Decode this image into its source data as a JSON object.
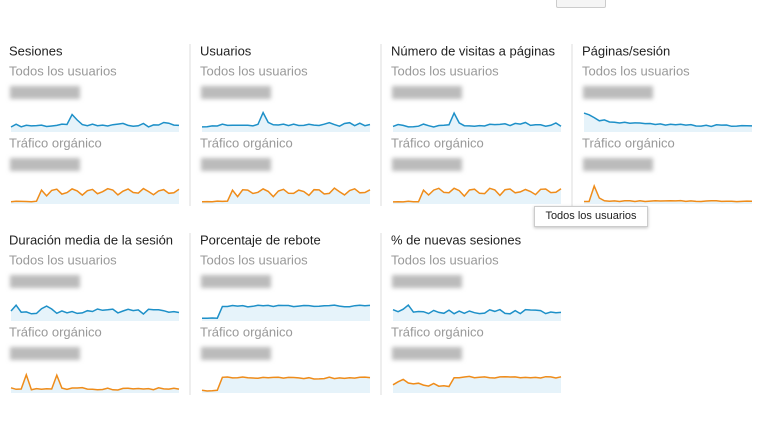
{
  "widgets": [
    {
      "title": "Sesiones",
      "series": [
        "Todos los usuarios",
        "Tráfico orgánico"
      ]
    },
    {
      "title": "Usuarios",
      "series": [
        "Todos los usuarios",
        "Tráfico orgánico"
      ]
    },
    {
      "title": "Número de visitas a páginas",
      "series": [
        "Todos los usuarios",
        "Tráfico orgánico"
      ]
    },
    {
      "title": "Páginas/sesión",
      "series": [
        "Todos los usuarios",
        "Tráfico orgánico"
      ]
    },
    {
      "title": "Duración media de la sesión",
      "series": [
        "Todos los usuarios",
        "Tráfico orgánico"
      ]
    },
    {
      "title": "Porcentaje de rebote",
      "series": [
        "Todos los usuarios",
        "Tráfico orgánico"
      ]
    },
    {
      "title": "% de nuevas sesiones",
      "series": [
        "Todos los usuarios",
        "Tráfico orgánico"
      ]
    }
  ],
  "tooltip": "Todos los usuarios"
}
